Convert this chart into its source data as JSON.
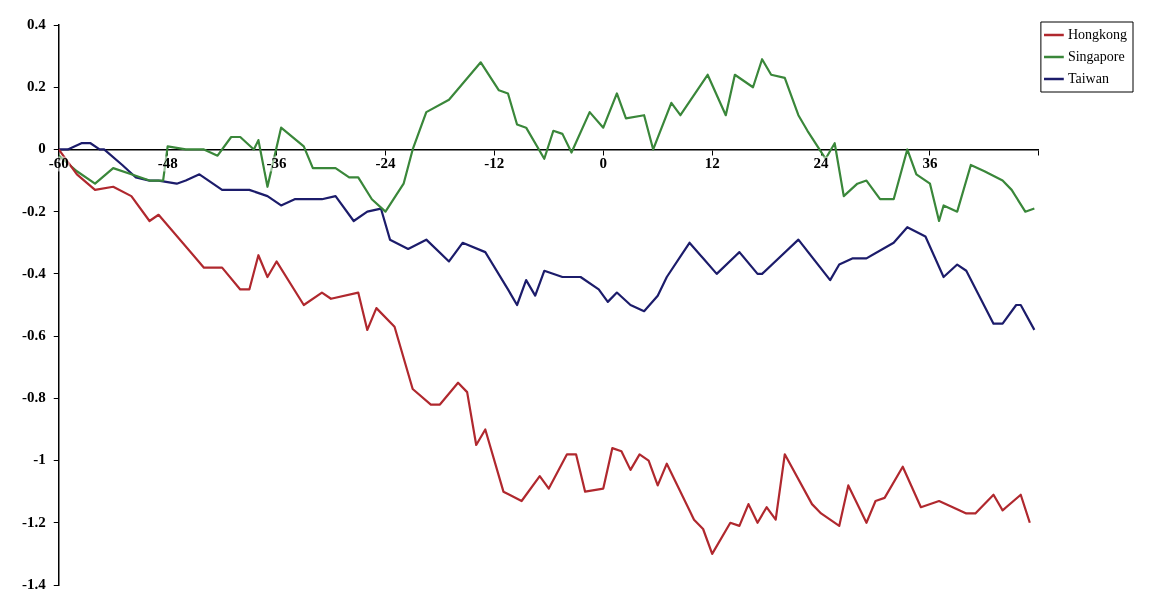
{
  "chart_data": {
    "type": "line",
    "xlim": [
      -60,
      48
    ],
    "xticks": [
      -60,
      -48,
      -36,
      -24,
      -12,
      0,
      12,
      24,
      36,
      {
        "value": 48,
        "label": null
      }
    ],
    "ylim": [
      -1.4,
      0.4
    ],
    "yticks": [
      0.4,
      0.2,
      0,
      -0.2,
      -0.4,
      -0.6,
      -0.8,
      -1,
      -1.2,
      -1.4
    ],
    "grid": false,
    "legend": "top right",
    "marker": "none",
    "line_style": "solid",
    "series": [
      {
        "name": "Hongkong",
        "color": "#b0282e",
        "x": [
          -60,
          -58,
          -56,
          -54,
          -52,
          -50,
          -49,
          -44,
          -42,
          -40,
          -39,
          -38,
          -37,
          -36,
          -33,
          -31,
          -30,
          -27,
          -26,
          -25,
          -23,
          -21,
          -19,
          -18,
          -16,
          -15,
          -14,
          -13,
          -11,
          -9,
          -7,
          -6,
          -4,
          -3,
          -2,
          0,
          1,
          2,
          3,
          4,
          5,
          6,
          7,
          10,
          11,
          12,
          14,
          15,
          16,
          17,
          18,
          19,
          20,
          23,
          24,
          26,
          27,
          29,
          30,
          31,
          33,
          35,
          37,
          40,
          41,
          43,
          44,
          46,
          47
        ],
        "values": [
          0,
          -0.08,
          -0.13,
          -0.12,
          -0.15,
          -0.23,
          -0.21,
          -0.38,
          -0.38,
          -0.45,
          -0.45,
          -0.34,
          -0.41,
          -0.36,
          -0.5,
          -0.46,
          -0.48,
          -0.46,
          -0.58,
          -0.51,
          -0.57,
          -0.77,
          -0.82,
          -0.82,
          -0.75,
          -0.78,
          -0.95,
          -0.9,
          -1.1,
          -1.13,
          -1.05,
          -1.09,
          -0.98,
          -0.98,
          -1.1,
          -1.09,
          -0.96,
          -0.97,
          -1.03,
          -0.98,
          -1,
          -1.08,
          -1.01,
          -1.19,
          -1.22,
          -1.3,
          -1.2,
          -1.21,
          -1.14,
          -1.2,
          -1.15,
          -1.19,
          -0.98,
          -1.14,
          -1.17,
          -1.21,
          -1.08,
          -1.2,
          -1.13,
          -1.12,
          -1.02,
          -1.15,
          -1.13,
          -1.17,
          -1.17,
          -1.11,
          -1.16,
          -1.11,
          -1.2
        ]
      },
      {
        "name": "Singapore",
        "color": "#3a873a",
        "x": [
          -60,
          -58,
          -56,
          -54,
          -52,
          -50,
          -48.5,
          -48,
          -46,
          -44,
          -42.5,
          -41,
          -40,
          -38.5,
          -38,
          -37,
          -35.5,
          -33,
          -32,
          -29.5,
          -28,
          -27,
          -25.5,
          -24,
          -22,
          -21,
          -19.5,
          -17,
          -13.5,
          -11.5,
          -10.5,
          -9.5,
          -8.5,
          -6.5,
          -5.5,
          -4.5,
          -3.5,
          -1.5,
          0,
          1.5,
          2.5,
          4.5,
          5.5,
          7.5,
          8.5,
          11.5,
          13.5,
          14.5,
          16.5,
          17.5,
          18.5,
          20,
          20.5,
          21.5,
          22.5,
          24.5,
          25.5,
          26.5,
          28,
          29,
          30.5,
          32,
          33.5,
          34.5,
          36,
          37,
          37.5,
          39,
          40.5,
          42,
          44,
          45,
          46.5,
          47.5
        ],
        "values": [
          -0.02,
          -0.07,
          -0.11,
          -0.06,
          -0.08,
          -0.1,
          -0.1,
          0.01,
          0,
          0,
          -0.02,
          0.04,
          0.04,
          0,
          0.03,
          -0.12,
          0.07,
          0.01,
          -0.06,
          -0.06,
          -0.09,
          -0.09,
          -0.16,
          -0.2,
          -0.11,
          0,
          0.12,
          0.16,
          0.28,
          0.19,
          0.18,
          0.08,
          0.07,
          -0.03,
          0.06,
          0.05,
          -0.01,
          0.12,
          0.07,
          0.18,
          0.1,
          0.11,
          0,
          0.15,
          0.11,
          0.24,
          0.11,
          0.24,
          0.2,
          0.29,
          0.24,
          0.23,
          0.19,
          0.11,
          0.06,
          -0.03,
          0.02,
          -0.15,
          -0.11,
          -0.1,
          -0.16,
          -0.16,
          0,
          -0.08,
          -0.11,
          -0.23,
          -0.18,
          -0.2,
          -0.05,
          -0.07,
          -0.1,
          -0.13,
          -0.2,
          -0.19
        ]
      },
      {
        "name": "Taiwan",
        "color": "#1c1c6b",
        "x": [
          -60,
          -59,
          -57.5,
          -56.5,
          -55.5,
          -55,
          -53,
          -51.5,
          -50,
          -49,
          -47,
          -46,
          -44.5,
          -42,
          -39,
          -37,
          -35.5,
          -34,
          -32,
          -31,
          -29.5,
          -27.5,
          -26,
          -24.5,
          -23.5,
          -21.5,
          -19.5,
          -17,
          -15.5,
          -13,
          -10.5,
          -9.5,
          -8.5,
          -7.5,
          -6.5,
          -4.5,
          -2.5,
          -0.5,
          0.5,
          1.5,
          3,
          4.5,
          6,
          7,
          9.5,
          11,
          12.5,
          15,
          17,
          17.5,
          21.5,
          25,
          26,
          27.5,
          29,
          32,
          33.5,
          35.5,
          37.5,
          39,
          40,
          43,
          44,
          45.5,
          46,
          47.5
        ],
        "values": [
          0,
          0,
          0.02,
          0.02,
          0,
          0,
          -0.05,
          -0.09,
          -0.1,
          -0.1,
          -0.11,
          -0.1,
          -0.08,
          -0.13,
          -0.13,
          -0.15,
          -0.18,
          -0.16,
          -0.16,
          -0.16,
          -0.15,
          -0.23,
          -0.2,
          -0.19,
          -0.29,
          -0.32,
          -0.29,
          -0.36,
          -0.3,
          -0.33,
          -0.45,
          -0.5,
          -0.42,
          -0.47,
          -0.39,
          -0.41,
          -0.41,
          -0.45,
          -0.49,
          -0.46,
          -0.5,
          -0.52,
          -0.47,
          -0.41,
          -0.3,
          -0.35,
          -0.4,
          -0.33,
          -0.4,
          -0.4,
          -0.29,
          -0.42,
          -0.37,
          -0.35,
          -0.35,
          -0.3,
          -0.25,
          -0.28,
          -0.41,
          -0.37,
          -0.39,
          -0.56,
          -0.56,
          -0.5,
          -0.5,
          -0.58
        ]
      }
    ]
  }
}
